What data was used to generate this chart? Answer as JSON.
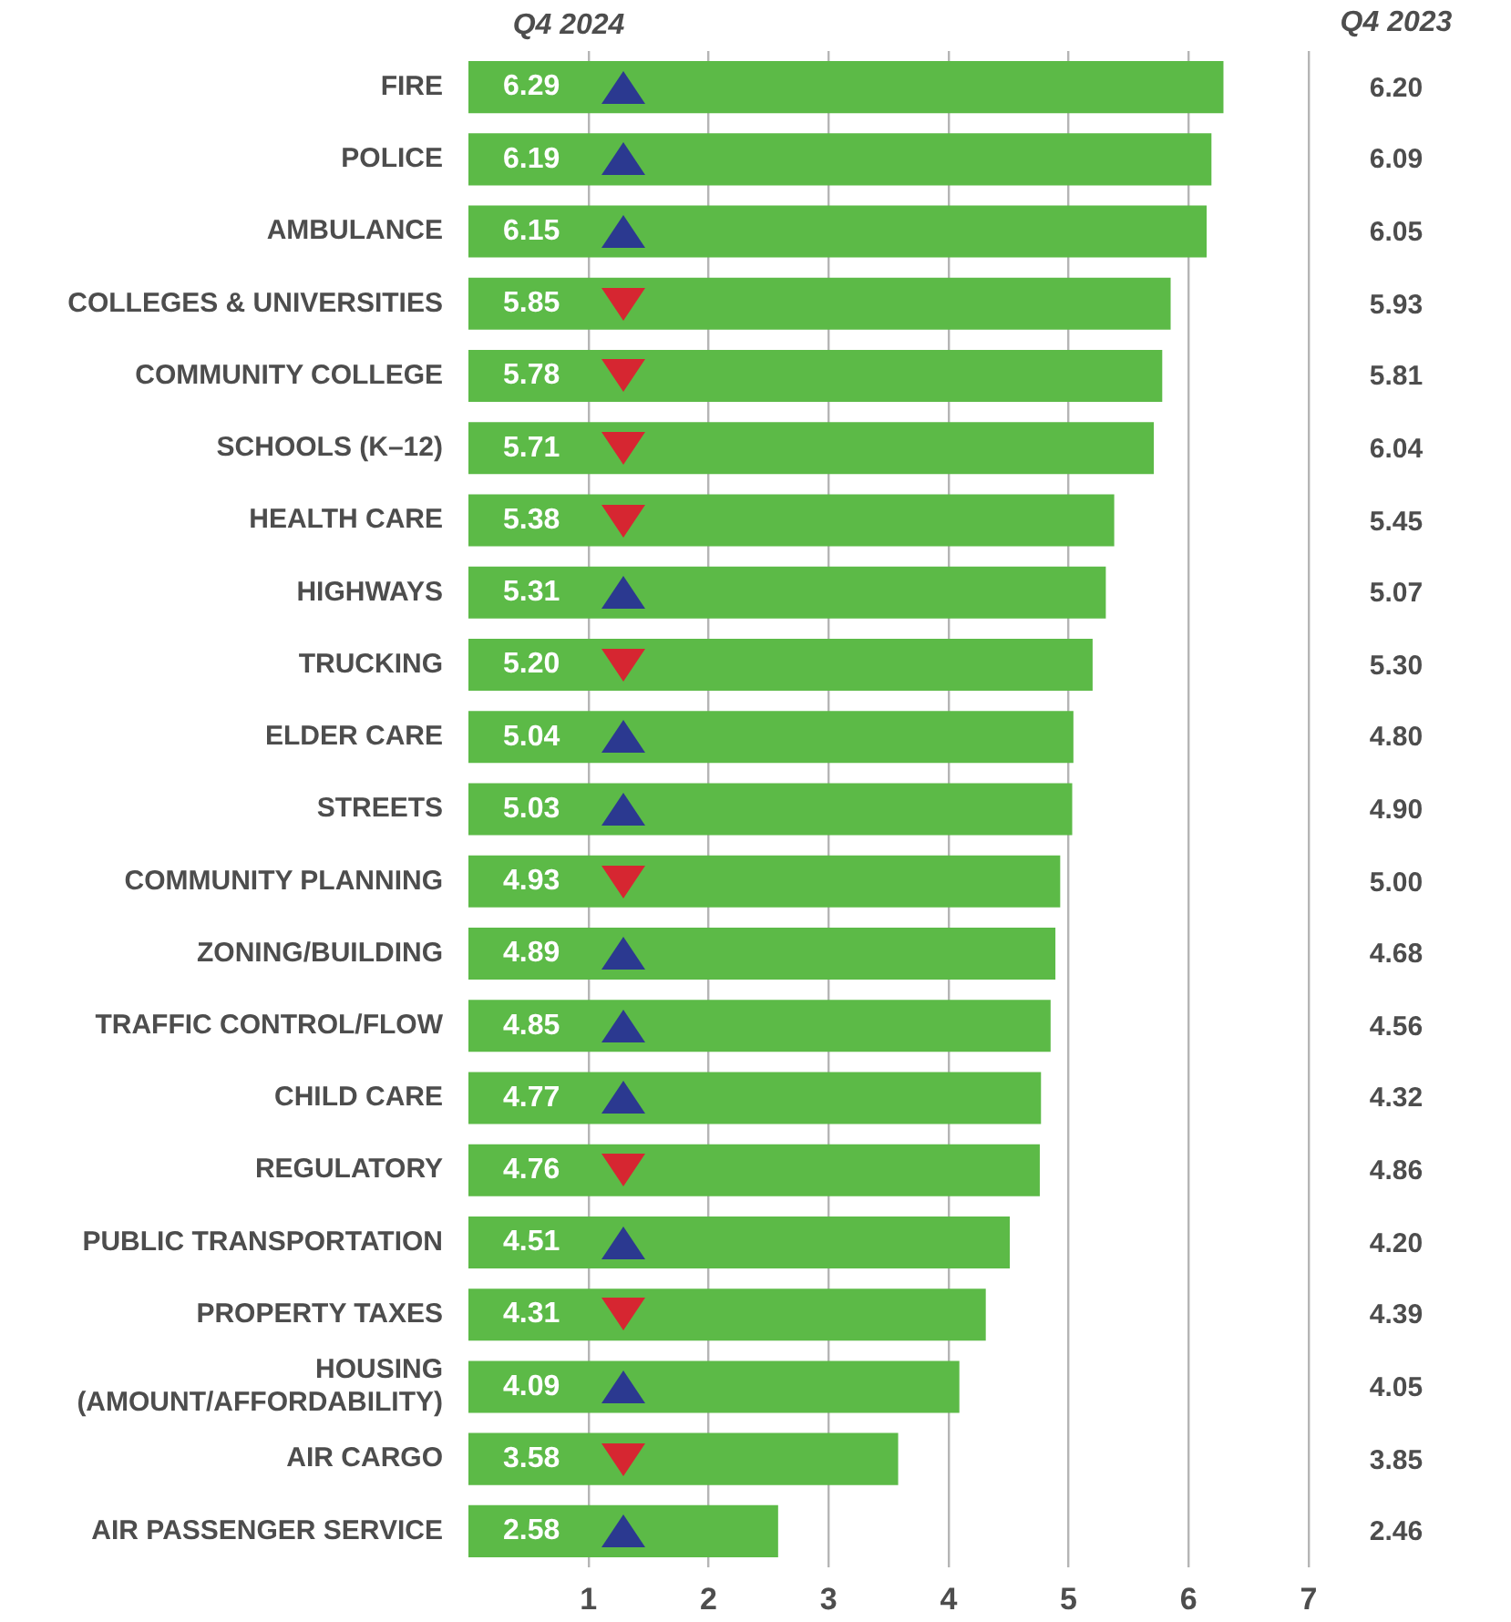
{
  "chart_data": {
    "type": "bar",
    "orientation": "horizontal",
    "categories": [
      "FIRE",
      "POLICE",
      "AMBULANCE",
      "COLLEGES & UNIVERSITIES",
      "COMMUNITY COLLEGE",
      "SCHOOLS (K–12)",
      "HEALTH CARE",
      "HIGHWAYS",
      "TRUCKING",
      "ELDER CARE",
      "STREETS",
      "COMMUNITY PLANNING",
      "ZONING/BUILDING",
      "TRAFFIC CONTROL/FLOW",
      "CHILD CARE",
      "REGULATORY",
      "PUBLIC TRANSPORTATION",
      "PROPERTY TAXES",
      "HOUSING\n(AMOUNT/AFFORDABILITY)",
      "AIR CARGO",
      "AIR PASSENGER SERVICE"
    ],
    "series": [
      {
        "name": "Q4 2024",
        "color": "#5cba47",
        "values": [
          6.29,
          6.19,
          6.15,
          5.85,
          5.78,
          5.71,
          5.38,
          5.31,
          5.2,
          5.04,
          5.03,
          4.93,
          4.89,
          4.85,
          4.77,
          4.76,
          4.51,
          4.31,
          4.09,
          3.58,
          2.58
        ],
        "value_labels": [
          "6.29",
          "6.19",
          "6.15",
          "5.85",
          "5.78",
          "5.71",
          "5.38",
          "5.31",
          "5.20",
          "5.04",
          "5.03",
          "4.93",
          "4.89",
          "4.85",
          "4.77",
          "4.76",
          "4.51",
          "4.31",
          "4.09",
          "3.58",
          "2.58"
        ]
      }
    ],
    "annotations": [
      "Q4 2023",
      "6.20",
      "6.09",
      "6.05",
      "5.93",
      "5.81",
      "6.04",
      "5.45",
      "5.07",
      "5.30",
      "4.80",
      "4.90",
      "5.00",
      "4.68",
      "4.56",
      "4.32",
      "4.86",
      "4.20",
      "4.39",
      "4.05",
      "3.85",
      "2.46"
    ],
    "xlim": [
      0,
      7
    ],
    "xticks": [
      1,
      2,
      3,
      4,
      5,
      6,
      7
    ],
    "grid": "x",
    "legend": false
  }
}
